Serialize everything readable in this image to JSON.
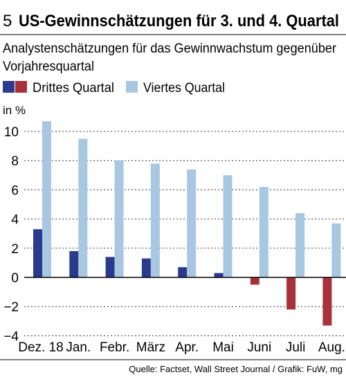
{
  "chart_data": {
    "type": "bar",
    "figure_number": "5",
    "title": "US-Gewinnschätzungen für 3. und 4. Quartal",
    "subtitle_line1": "Analystenschätzungen für das Gewinnwachstum gegenüber",
    "subtitle_line2": "Vorjahresquartal",
    "ylabel": "in %",
    "ylim": [
      -4,
      11
    ],
    "yticks": [
      10,
      8,
      6,
      4,
      2,
      0,
      -2,
      -4
    ],
    "ytick_labels": [
      "10",
      "8",
      "6",
      "4",
      "2",
      "0",
      "−2",
      "−4"
    ],
    "grid": true,
    "legend_position": "top",
    "legend": [
      "Drittes Quartal",
      "Viertes Quartal"
    ],
    "categories": [
      "Dez. 18",
      "Jan.",
      "Febr.",
      "März",
      "Apr.",
      "Mai",
      "Juni",
      "Juli",
      "Aug."
    ],
    "series": [
      {
        "name": "Drittes Quartal",
        "values": [
          3.3,
          1.8,
          1.4,
          1.3,
          0.7,
          0.3,
          -0.5,
          -2.2,
          -3.3
        ]
      },
      {
        "name": "Viertes Quartal",
        "values": [
          10.7,
          9.5,
          8.0,
          7.8,
          7.4,
          7.0,
          6.2,
          4.4,
          3.7
        ]
      }
    ],
    "colors": {
      "q3_positive": "#2b3a8c",
      "q3_negative": "#a8323a",
      "q4": "#a9c7e1",
      "grid": "#333333"
    },
    "source": "Quelle: Factset, Wall Street Journal / Grafik: FuW, mg"
  }
}
